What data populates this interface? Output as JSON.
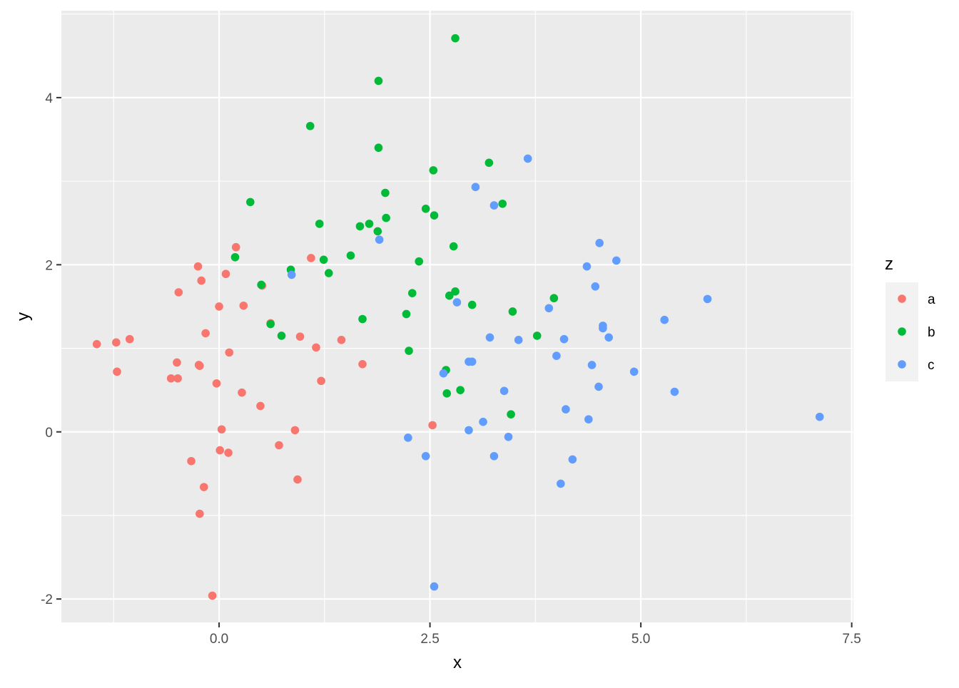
{
  "chart_data": {
    "type": "scatter",
    "xlabel": "x",
    "ylabel": "y",
    "xlim": [
      -1.87,
      7.52
    ],
    "ylim": [
      -2.28,
      5.04
    ],
    "x_ticks": [
      0.0,
      2.5,
      5.0,
      7.5
    ],
    "x_tick_labels": [
      "0.0",
      "2.5",
      "5.0",
      "7.5"
    ],
    "y_ticks": [
      -2,
      0,
      2,
      4
    ],
    "y_tick_labels": [
      "-2",
      "0",
      "2",
      "4"
    ],
    "grid": true,
    "legend": {
      "title": "z",
      "placement": "right",
      "entries": [
        "a",
        "b",
        "c"
      ]
    },
    "colors": {
      "a": "#F8766D",
      "b": "#00BA38",
      "c": "#619CFF",
      "panel_background": "#EBEBEB",
      "grid": "#FFFFFF"
    },
    "series": [
      {
        "name": "a",
        "points": [
          [
            -1.45,
            1.05
          ],
          [
            -1.22,
            1.07
          ],
          [
            -1.21,
            0.72
          ],
          [
            -1.06,
            1.11
          ],
          [
            -0.57,
            0.64
          ],
          [
            -0.5,
            0.83
          ],
          [
            -0.49,
            0.64
          ],
          [
            -0.48,
            1.67
          ],
          [
            -0.33,
            -0.35
          ],
          [
            -0.25,
            1.98
          ],
          [
            -0.24,
            0.8
          ],
          [
            -0.23,
            0.79
          ],
          [
            -0.23,
            -0.98
          ],
          [
            -0.21,
            1.81
          ],
          [
            -0.18,
            -0.66
          ],
          [
            -0.16,
            1.18
          ],
          [
            -0.08,
            -1.96
          ],
          [
            -0.03,
            0.58
          ],
          [
            0.0,
            1.5
          ],
          [
            0.01,
            -0.22
          ],
          [
            0.03,
            0.03
          ],
          [
            0.08,
            1.89
          ],
          [
            0.11,
            -0.25
          ],
          [
            0.12,
            0.95
          ],
          [
            0.2,
            2.21
          ],
          [
            0.27,
            0.47
          ],
          [
            0.29,
            1.51
          ],
          [
            0.49,
            0.31
          ],
          [
            0.51,
            1.75
          ],
          [
            0.61,
            1.3
          ],
          [
            0.71,
            -0.16
          ],
          [
            0.9,
            0.02
          ],
          [
            0.93,
            -0.57
          ],
          [
            0.96,
            1.14
          ],
          [
            1.09,
            2.08
          ],
          [
            1.15,
            1.01
          ],
          [
            1.21,
            0.61
          ],
          [
            1.45,
            1.1
          ],
          [
            1.7,
            0.81
          ],
          [
            2.53,
            0.08
          ]
        ]
      },
      {
        "name": "b",
        "points": [
          [
            0.19,
            2.09
          ],
          [
            0.37,
            2.75
          ],
          [
            0.5,
            1.76
          ],
          [
            0.61,
            1.29
          ],
          [
            0.74,
            1.15
          ],
          [
            0.85,
            1.94
          ],
          [
            1.08,
            3.66
          ],
          [
            1.19,
            2.49
          ],
          [
            1.24,
            2.06
          ],
          [
            1.3,
            1.9
          ],
          [
            1.56,
            2.11
          ],
          [
            1.67,
            2.46
          ],
          [
            1.7,
            1.35
          ],
          [
            1.78,
            2.49
          ],
          [
            1.88,
            2.4
          ],
          [
            1.89,
            3.4
          ],
          [
            1.89,
            4.2
          ],
          [
            1.97,
            2.86
          ],
          [
            1.98,
            2.56
          ],
          [
            2.22,
            1.41
          ],
          [
            2.25,
            0.97
          ],
          [
            2.29,
            1.66
          ],
          [
            2.37,
            2.04
          ],
          [
            2.45,
            2.67
          ],
          [
            2.54,
            3.13
          ],
          [
            2.55,
            2.59
          ],
          [
            2.69,
            0.74
          ],
          [
            2.7,
            0.46
          ],
          [
            2.73,
            1.63
          ],
          [
            2.78,
            2.22
          ],
          [
            2.8,
            1.68
          ],
          [
            2.8,
            4.71
          ],
          [
            2.86,
            0.5
          ],
          [
            3.0,
            1.52
          ],
          [
            3.2,
            3.22
          ],
          [
            3.36,
            2.73
          ],
          [
            3.46,
            0.21
          ],
          [
            3.48,
            1.44
          ],
          [
            3.77,
            1.15
          ],
          [
            3.97,
            1.6
          ]
        ]
      },
      {
        "name": "c",
        "points": [
          [
            0.86,
            1.88
          ],
          [
            1.9,
            2.3
          ],
          [
            2.24,
            -0.07
          ],
          [
            2.45,
            -0.29
          ],
          [
            2.55,
            -1.85
          ],
          [
            2.66,
            0.7
          ],
          [
            2.82,
            1.55
          ],
          [
            2.96,
            0.84
          ],
          [
            2.96,
            0.02
          ],
          [
            3.0,
            0.84
          ],
          [
            3.04,
            2.93
          ],
          [
            3.13,
            0.12
          ],
          [
            3.21,
            1.13
          ],
          [
            3.26,
            -0.29
          ],
          [
            3.26,
            2.71
          ],
          [
            3.38,
            0.49
          ],
          [
            3.43,
            -0.06
          ],
          [
            3.55,
            1.1
          ],
          [
            3.66,
            3.27
          ],
          [
            3.91,
            1.48
          ],
          [
            4.0,
            0.91
          ],
          [
            4.05,
            -0.62
          ],
          [
            4.09,
            1.11
          ],
          [
            4.11,
            0.27
          ],
          [
            4.19,
            -0.33
          ],
          [
            4.36,
            1.98
          ],
          [
            4.38,
            0.15
          ],
          [
            4.42,
            0.8
          ],
          [
            4.46,
            1.74
          ],
          [
            4.5,
            0.54
          ],
          [
            4.51,
            2.26
          ],
          [
            4.55,
            1.27
          ],
          [
            4.55,
            1.24
          ],
          [
            4.62,
            1.13
          ],
          [
            4.71,
            2.05
          ],
          [
            4.92,
            0.72
          ],
          [
            5.28,
            1.34
          ],
          [
            5.4,
            0.48
          ],
          [
            5.79,
            1.59
          ],
          [
            7.12,
            0.18
          ]
        ]
      }
    ]
  }
}
